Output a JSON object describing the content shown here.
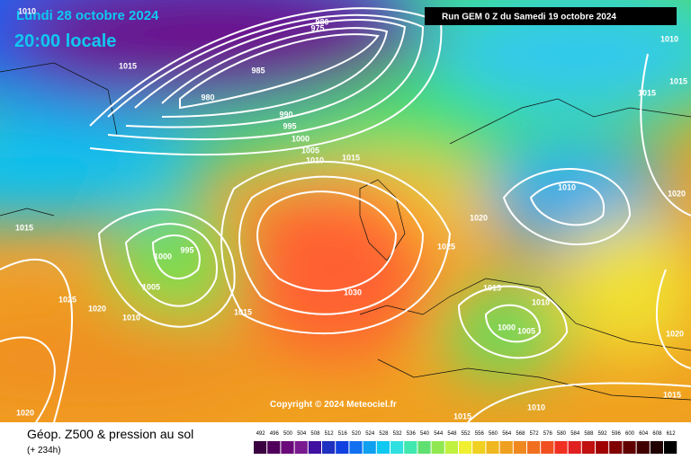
{
  "header": {
    "date": "Lundi 28 octobre 2024",
    "time": "20:00 locale"
  },
  "run": "Run GEM 0 Z du Samedi 19 octobre 2024",
  "copyright": "Copyright © 2024 Meteociel.fr",
  "footer": {
    "title": "Géop. Z500 & pression au sol",
    "subtitle": "(+ 234h)"
  },
  "isobar_labels": [
    1010,
    980,
    975,
    1015,
    985,
    980,
    990,
    995,
    1000,
    1005,
    1010,
    1015,
    1010,
    1015,
    1015,
    1010,
    1020,
    1020,
    1015,
    1025,
    1000,
    995,
    1005,
    1025,
    1020,
    1010,
    1015,
    1030,
    1015,
    1010,
    1000,
    1005,
    1020,
    1015,
    1010,
    1015,
    1020
  ],
  "scale": {
    "values": [
      492,
      496,
      500,
      504,
      508,
      512,
      516,
      520,
      524,
      528,
      532,
      536,
      540,
      544,
      548,
      552,
      556,
      560,
      564,
      568,
      572,
      576,
      580,
      584,
      588,
      592,
      596,
      600,
      604,
      608,
      612
    ],
    "colors": [
      "#3a0040",
      "#50005a",
      "#6a0a7a",
      "#7a1a90",
      "#4010a0",
      "#2030c0",
      "#1040e0",
      "#1070f0",
      "#10a0f0",
      "#10c8f0",
      "#30e0e0",
      "#40e8b0",
      "#60e070",
      "#90e850",
      "#c0f040",
      "#f0f030",
      "#f0d020",
      "#f0b820",
      "#f0a020",
      "#f08820",
      "#f07020",
      "#f05020",
      "#f03020",
      "#e02020",
      "#c01010",
      "#a00000",
      "#800000",
      "#600000",
      "#400000",
      "#200000",
      "#000000"
    ]
  }
}
